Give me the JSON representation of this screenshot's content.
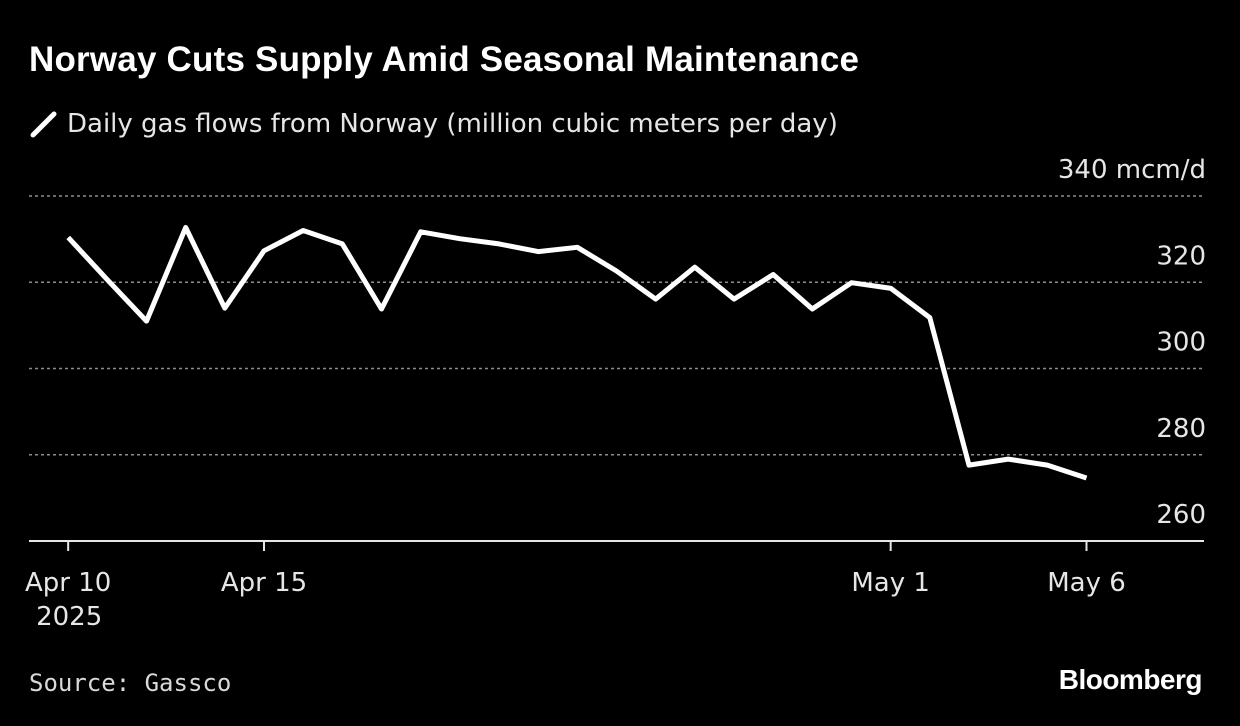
{
  "chart_data": {
    "type": "line",
    "title": "Norway Cuts Supply Amid Seasonal Maintenance",
    "legend": "Daily gas flows from Norway (million cubic meters per day)",
    "y_unit_label": "340 mcm/d",
    "ylim": [
      260,
      340
    ],
    "y_ticks": [
      260,
      280,
      300,
      320,
      340
    ],
    "y_tick_labels": [
      "260",
      "280",
      "300",
      "320",
      "340 mcm/d"
    ],
    "x_ticks": [
      {
        "date": "2025-04-10",
        "label": "Apr 10",
        "sublabel": "2025"
      },
      {
        "date": "2025-04-15",
        "label": "Apr 15",
        "sublabel": ""
      },
      {
        "date": "2025-05-01",
        "label": "May 1",
        "sublabel": ""
      },
      {
        "date": "2025-05-06",
        "label": "May 6",
        "sublabel": ""
      }
    ],
    "x_range": [
      "2025-04-09",
      "2025-05-09"
    ],
    "grid": true,
    "legend_position": "top-left",
    "series": [
      {
        "name": "Daily gas flows from Norway (million cubic meters per day)",
        "color": "#ffffff",
        "x": [
          "2025-04-10",
          "2025-04-11",
          "2025-04-12",
          "2025-04-13",
          "2025-04-14",
          "2025-04-15",
          "2025-04-16",
          "2025-04-17",
          "2025-04-18",
          "2025-04-19",
          "2025-04-20",
          "2025-04-21",
          "2025-04-22",
          "2025-04-23",
          "2025-04-24",
          "2025-04-25",
          "2025-04-26",
          "2025-04-27",
          "2025-04-28",
          "2025-04-29",
          "2025-04-30",
          "2025-05-01",
          "2025-05-02",
          "2025-05-03",
          "2025-05-04",
          "2025-05-05",
          "2025-05-06"
        ],
        "y": [
          330.4,
          320.6,
          311.0,
          332.7,
          314.0,
          327.3,
          332.0,
          328.9,
          313.8,
          331.7,
          330.1,
          328.9,
          327.1,
          328.1,
          322.6,
          316.1,
          323.5,
          316.1,
          321.8,
          313.8,
          319.9,
          318.6,
          311.8,
          277.6,
          279.0,
          277.6,
          274.6
        ]
      }
    ]
  },
  "footer": {
    "source": "Source: Gassco",
    "brand": "Bloomberg"
  }
}
